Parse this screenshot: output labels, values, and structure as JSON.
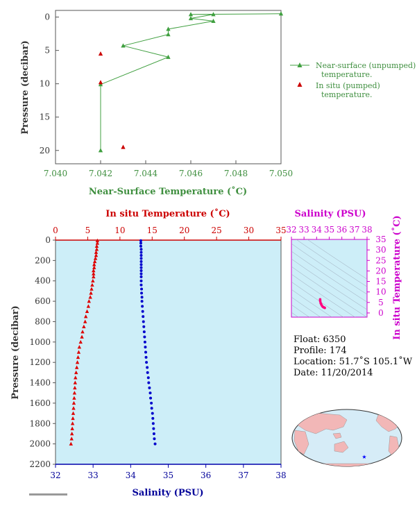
{
  "chart_data": [
    {
      "type": "line",
      "title": "",
      "xlabel": "Near-Surface Temperature (˚C)",
      "ylabel": "Pressure (decibar)",
      "xlim": [
        7.04,
        7.05
      ],
      "ylim": [
        22,
        -1
      ],
      "x_ticks": [
        "7.040",
        "7.042",
        "7.044",
        "7.046",
        "7.048",
        "7.050"
      ],
      "y_ticks": [
        "0",
        "5",
        "10",
        "15",
        "20"
      ],
      "series": [
        {
          "name": "Near-surface (unpumped) temperature.",
          "marker": "triangle",
          "color": "#3f9f3f",
          "points": [
            [
              7.05,
              -0.5
            ],
            [
              7.046,
              -0.4
            ],
            [
              7.047,
              -0.4
            ],
            [
              7.046,
              0.2
            ],
            [
              7.047,
              0.6
            ],
            [
              7.045,
              1.8
            ],
            [
              7.045,
              2.6
            ],
            [
              7.043,
              4.3
            ],
            [
              7.045,
              6.0
            ],
            [
              7.042,
              10.1
            ],
            [
              7.042,
              20.0
            ]
          ]
        },
        {
          "name": "In situ (pumped) temperature.",
          "marker": "triangle",
          "color": "#cc0000",
          "points": [
            [
              7.042,
              5.5
            ],
            [
              7.042,
              9.8
            ],
            [
              7.043,
              19.5
            ]
          ]
        }
      ],
      "legend_position": "right"
    },
    {
      "type": "scatter",
      "title": "",
      "ylabel": "Pressure (decibar)",
      "top_xlabel": "In situ Temperature (˚C)",
      "bottom_xlabel": "Salinity (PSU)",
      "top_xlim": [
        0,
        35
      ],
      "bottom_xlim": [
        32,
        38
      ],
      "ylim": [
        2200,
        0
      ],
      "top_ticks": [
        "0",
        "5",
        "10",
        "15",
        "20",
        "25",
        "30",
        "35"
      ],
      "bottom_ticks": [
        "32",
        "33",
        "34",
        "35",
        "36",
        "37",
        "38"
      ],
      "y_ticks": [
        "0",
        "200",
        "400",
        "600",
        "800",
        "1000",
        "1200",
        "1400",
        "1600",
        "1800",
        "2000",
        "2200"
      ],
      "series": [
        {
          "name": "In situ Temperature",
          "color": "#dd0000",
          "marker": "triangle",
          "axis": "top",
          "points": [
            [
              6.5,
              5
            ],
            [
              6.5,
              30
            ],
            [
              6.4,
              60
            ],
            [
              6.4,
              90
            ],
            [
              6.3,
              120
            ],
            [
              6.3,
              150
            ],
            [
              6.2,
              180
            ],
            [
              6.1,
              210
            ],
            [
              6.0,
              240
            ],
            [
              6.0,
              270
            ],
            [
              5.9,
              300
            ],
            [
              5.9,
              330
            ],
            [
              5.9,
              360
            ],
            [
              5.8,
              400
            ],
            [
              5.7,
              440
            ],
            [
              5.6,
              480
            ],
            [
              5.5,
              520
            ],
            [
              5.4,
              560
            ],
            [
              5.2,
              600
            ],
            [
              5.1,
              650
            ],
            [
              4.9,
              700
            ],
            [
              4.7,
              750
            ],
            [
              4.6,
              800
            ],
            [
              4.4,
              850
            ],
            [
              4.2,
              900
            ],
            [
              4.1,
              950
            ],
            [
              3.9,
              1000
            ],
            [
              3.7,
              1050
            ],
            [
              3.6,
              1100
            ],
            [
              3.5,
              1150
            ],
            [
              3.4,
              1200
            ],
            [
              3.3,
              1250
            ],
            [
              3.2,
              1300
            ],
            [
              3.1,
              1350
            ],
            [
              3.05,
              1400
            ],
            [
              3.0,
              1450
            ],
            [
              2.95,
              1500
            ],
            [
              2.9,
              1550
            ],
            [
              2.85,
              1600
            ],
            [
              2.8,
              1650
            ],
            [
              2.75,
              1700
            ],
            [
              2.7,
              1750
            ],
            [
              2.65,
              1800
            ],
            [
              2.6,
              1850
            ],
            [
              2.55,
              1900
            ],
            [
              2.5,
              1950
            ],
            [
              2.4,
              2000
            ]
          ]
        },
        {
          "name": "Salinity",
          "color": "#0000cc",
          "marker": "dot",
          "axis": "bottom",
          "points": [
            [
              34.27,
              5
            ],
            [
              34.27,
              30
            ],
            [
              34.27,
              60
            ],
            [
              34.28,
              90
            ],
            [
              34.28,
              120
            ],
            [
              34.28,
              150
            ],
            [
              34.28,
              180
            ],
            [
              34.28,
              210
            ],
            [
              34.28,
              240
            ],
            [
              34.28,
              270
            ],
            [
              34.28,
              300
            ],
            [
              34.28,
              330
            ],
            [
              34.28,
              360
            ],
            [
              34.28,
              400
            ],
            [
              34.28,
              440
            ],
            [
              34.29,
              480
            ],
            [
              34.29,
              520
            ],
            [
              34.3,
              560
            ],
            [
              34.3,
              600
            ],
            [
              34.31,
              650
            ],
            [
              34.32,
              700
            ],
            [
              34.33,
              750
            ],
            [
              34.34,
              800
            ],
            [
              34.35,
              850
            ],
            [
              34.36,
              900
            ],
            [
              34.37,
              950
            ],
            [
              34.38,
              1000
            ],
            [
              34.39,
              1050
            ],
            [
              34.4,
              1100
            ],
            [
              34.41,
              1150
            ],
            [
              34.42,
              1200
            ],
            [
              34.44,
              1250
            ],
            [
              34.45,
              1300
            ],
            [
              34.47,
              1350
            ],
            [
              34.48,
              1400
            ],
            [
              34.5,
              1450
            ],
            [
              34.52,
              1500
            ],
            [
              34.53,
              1550
            ],
            [
              34.55,
              1600
            ],
            [
              34.56,
              1650
            ],
            [
              34.58,
              1700
            ],
            [
              34.59,
              1750
            ],
            [
              34.6,
              1800
            ],
            [
              34.61,
              1850
            ],
            [
              34.62,
              1900
            ],
            [
              34.63,
              1950
            ],
            [
              34.65,
              2000
            ]
          ]
        }
      ],
      "grid": false
    },
    {
      "type": "scatter",
      "title": "",
      "top_xlabel": "Salinity (PSU)",
      "right_ylabel": "In situ Temperature (˚C)",
      "xlim": [
        32,
        38
      ],
      "ylim": [
        -2,
        35
      ],
      "x_ticks": [
        "32",
        "33",
        "34",
        "35",
        "36",
        "37",
        "38"
      ],
      "y_ticks": [
        "0",
        "5",
        "10",
        "15",
        "20",
        "25",
        "30",
        "35"
      ],
      "series": [
        {
          "name": "T-S",
          "color": "#ff0080",
          "points": [
            [
              34.28,
              6.5
            ],
            [
              34.28,
              6.0
            ],
            [
              34.29,
              5.5
            ],
            [
              34.32,
              4.7
            ],
            [
              34.36,
              4.2
            ],
            [
              34.4,
              3.7
            ],
            [
              34.45,
              3.2
            ],
            [
              34.5,
              2.9
            ],
            [
              34.55,
              2.7
            ],
            [
              34.6,
              2.6
            ],
            [
              34.65,
              2.4
            ]
          ]
        }
      ]
    }
  ],
  "info": {
    "float": "Float: 6350",
    "profile": "Profile: 174",
    "location": "Location: 51.7˚S 105.1˚W",
    "date": "Date: 11/20/2014"
  },
  "legend": {
    "unpumped_1": "Near-surface (unpumped)",
    "unpumped_2": "temperature.",
    "pumped_1": "In situ (pumped)",
    "pumped_2": "temperature."
  },
  "colors": {
    "green": "#3f9f3f",
    "red": "#cc0000",
    "blue": "#000099",
    "magenta": "#cc00cc",
    "panel_bg": "#cdeef8"
  },
  "map": {
    "marker": "star"
  }
}
